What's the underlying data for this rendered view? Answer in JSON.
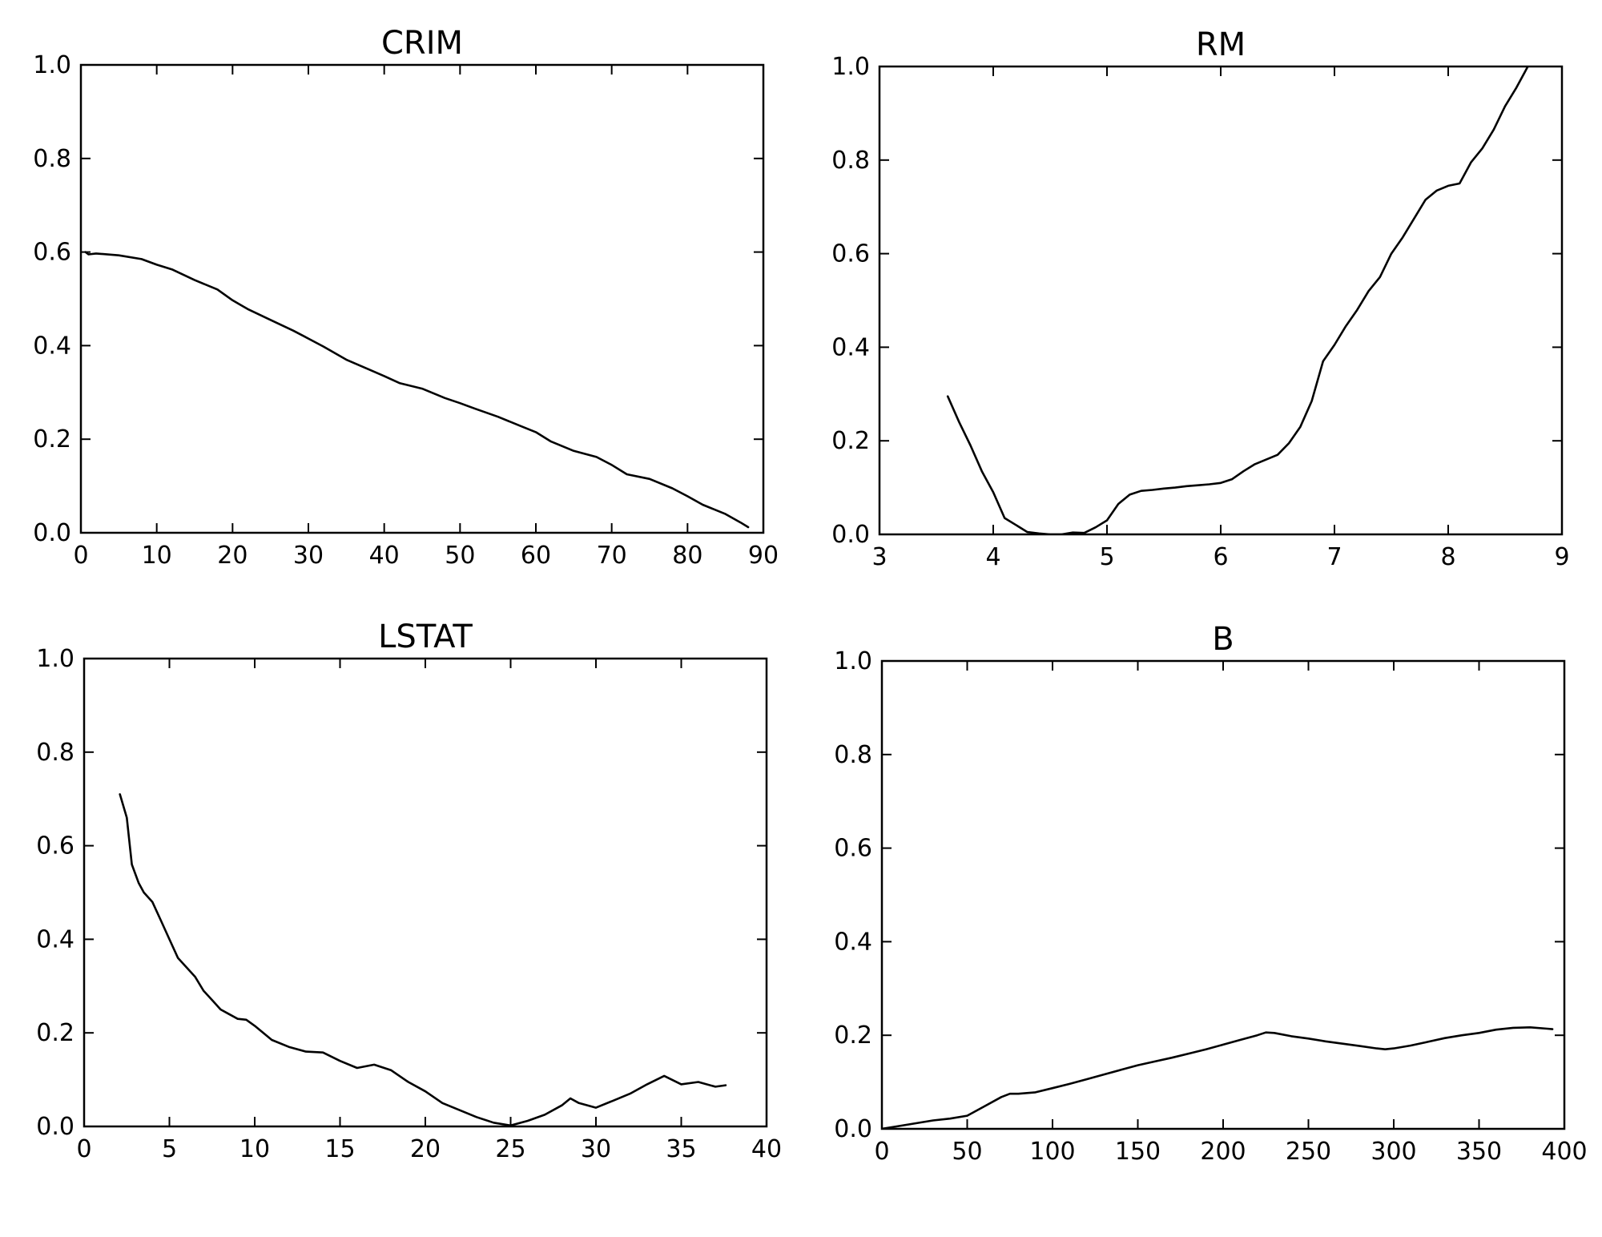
{
  "chart_data": [
    {
      "type": "line",
      "title": "CRIM",
      "xlabel": "",
      "ylabel": "",
      "xlim": [
        0,
        90
      ],
      "ylim": [
        0,
        1
      ],
      "xticks": [
        "0",
        "10",
        "20",
        "30",
        "40",
        "50",
        "60",
        "70",
        "80",
        "90"
      ],
      "yticks": [
        "0.0",
        "0.2",
        "0.4",
        "0.6",
        "0.8",
        "1.0"
      ],
      "grid": false,
      "series": [
        {
          "color": "#000000",
          "x": [
            0.6,
            1,
            2,
            5,
            8,
            10,
            12,
            15,
            18,
            20,
            22,
            25,
            28,
            30,
            32,
            35,
            38,
            40,
            42,
            45,
            48,
            50,
            52,
            55,
            58,
            60,
            62,
            65,
            68,
            70,
            72,
            75,
            78,
            80,
            82,
            85,
            87,
            88
          ],
          "y": [
            0.6,
            0.595,
            0.597,
            0.593,
            0.585,
            0.573,
            0.563,
            0.54,
            0.52,
            0.497,
            0.478,
            0.455,
            0.432,
            0.415,
            0.398,
            0.37,
            0.349,
            0.335,
            0.32,
            0.308,
            0.288,
            0.277,
            0.265,
            0.248,
            0.228,
            0.215,
            0.195,
            0.175,
            0.162,
            0.145,
            0.125,
            0.115,
            0.095,
            0.078,
            0.06,
            0.04,
            0.022,
            0.012
          ]
        }
      ]
    },
    {
      "type": "line",
      "title": "RM",
      "xlabel": "",
      "ylabel": "",
      "xlim": [
        3,
        9
      ],
      "ylim": [
        0,
        1
      ],
      "xticks": [
        "3",
        "4",
        "5",
        "6",
        "7",
        "8",
        "9"
      ],
      "yticks": [
        "0.0",
        "0.2",
        "0.4",
        "0.6",
        "0.8",
        "1.0"
      ],
      "grid": false,
      "series": [
        {
          "color": "#000000",
          "x": [
            3.6,
            3.7,
            3.8,
            3.9,
            4.0,
            4.1,
            4.2,
            4.3,
            4.4,
            4.5,
            4.6,
            4.7,
            4.8,
            4.9,
            5.0,
            5.1,
            5.2,
            5.3,
            5.4,
            5.5,
            5.6,
            5.7,
            5.8,
            5.9,
            6.0,
            6.1,
            6.2,
            6.3,
            6.4,
            6.5,
            6.6,
            6.7,
            6.8,
            6.9,
            7.0,
            7.1,
            7.2,
            7.3,
            7.4,
            7.5,
            7.6,
            7.7,
            7.8,
            7.9,
            8.0,
            8.1,
            8.2,
            8.3,
            8.4,
            8.5,
            8.6,
            8.7
          ],
          "y": [
            0.295,
            0.24,
            0.19,
            0.135,
            0.09,
            0.035,
            0.02,
            0.005,
            0.002,
            0.0,
            0.0,
            0.004,
            0.003,
            0.015,
            0.03,
            0.065,
            0.085,
            0.093,
            0.095,
            0.098,
            0.1,
            0.103,
            0.105,
            0.107,
            0.11,
            0.118,
            0.135,
            0.15,
            0.16,
            0.17,
            0.195,
            0.23,
            0.285,
            0.37,
            0.405,
            0.445,
            0.48,
            0.52,
            0.55,
            0.6,
            0.635,
            0.675,
            0.715,
            0.735,
            0.745,
            0.75,
            0.795,
            0.825,
            0.865,
            0.915,
            0.955,
            1.0
          ]
        }
      ]
    },
    {
      "type": "line",
      "title": "LSTAT",
      "xlabel": "",
      "ylabel": "",
      "xlim": [
        0,
        40
      ],
      "ylim": [
        0,
        1
      ],
      "xticks": [
        "0",
        "5",
        "10",
        "15",
        "20",
        "25",
        "30",
        "35",
        "40"
      ],
      "yticks": [
        "0.0",
        "0.2",
        "0.4",
        "0.6",
        "0.8",
        "1.0"
      ],
      "grid": false,
      "series": [
        {
          "color": "#000000",
          "x": [
            2.1,
            2.5,
            2.8,
            3.2,
            3.5,
            4,
            4.5,
            5,
            5.5,
            6,
            6.5,
            7,
            7.5,
            8,
            8.5,
            9,
            9.5,
            10,
            11,
            12,
            13,
            14,
            15,
            16,
            17,
            18,
            19,
            20,
            21,
            22,
            23,
            24,
            25,
            26,
            27,
            28,
            28.5,
            29,
            30,
            31,
            32,
            33,
            34,
            35,
            36,
            37,
            37.6
          ],
          "y": [
            0.71,
            0.66,
            0.56,
            0.52,
            0.5,
            0.48,
            0.44,
            0.4,
            0.36,
            0.34,
            0.32,
            0.29,
            0.27,
            0.25,
            0.24,
            0.23,
            0.228,
            0.215,
            0.185,
            0.17,
            0.16,
            0.158,
            0.14,
            0.125,
            0.132,
            0.12,
            0.095,
            0.075,
            0.05,
            0.035,
            0.02,
            0.008,
            0.002,
            0.012,
            0.025,
            0.045,
            0.06,
            0.05,
            0.04,
            0.055,
            0.07,
            0.09,
            0.108,
            0.09,
            0.095,
            0.085,
            0.088
          ]
        }
      ]
    },
    {
      "type": "line",
      "title": "B",
      "xlabel": "",
      "ylabel": "",
      "xlim": [
        0,
        400
      ],
      "ylim": [
        0,
        1
      ],
      "xticks": [
        "0",
        "50",
        "100",
        "150",
        "200",
        "250",
        "300",
        "350",
        "400"
      ],
      "yticks": [
        "0.0",
        "0.2",
        "0.4",
        "0.6",
        "0.8",
        "1.0"
      ],
      "grid": false,
      "series": [
        {
          "color": "#000000",
          "x": [
            0,
            10,
            20,
            30,
            40,
            50,
            60,
            70,
            75,
            80,
            90,
            100,
            110,
            120,
            130,
            140,
            150,
            160,
            170,
            180,
            190,
            200,
            210,
            220,
            225,
            230,
            240,
            250,
            260,
            270,
            280,
            290,
            295,
            300,
            310,
            320,
            330,
            340,
            350,
            360,
            370,
            380,
            390,
            393
          ],
          "y": [
            0.0,
            0.006,
            0.012,
            0.018,
            0.022,
            0.028,
            0.048,
            0.068,
            0.075,
            0.075,
            0.078,
            0.087,
            0.096,
            0.106,
            0.116,
            0.126,
            0.136,
            0.144,
            0.152,
            0.161,
            0.17,
            0.18,
            0.19,
            0.2,
            0.206,
            0.205,
            0.198,
            0.193,
            0.187,
            0.182,
            0.177,
            0.172,
            0.17,
            0.172,
            0.178,
            0.186,
            0.194,
            0.2,
            0.205,
            0.212,
            0.216,
            0.217,
            0.214,
            0.213
          ]
        }
      ]
    }
  ]
}
